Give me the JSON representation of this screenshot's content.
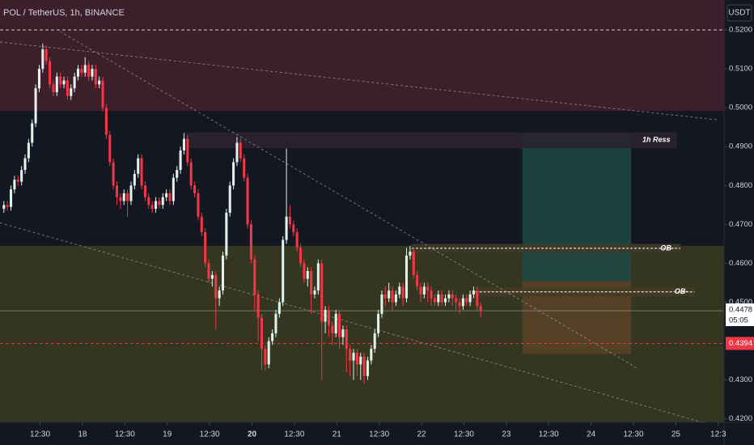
{
  "chart_data": {
    "type": "candlestick",
    "title": "POL / TetherUS, 1h, BINANCE",
    "currency": "USDT",
    "up_color": "#e0f2e9",
    "down_color": "#f23645",
    "ylim": [
      0.4191,
      0.5277
    ],
    "xlim": [
      -1.1,
      203.9
    ],
    "yticks": [
      {
        "value": 0.52,
        "label": "0.5200"
      },
      {
        "value": 0.51,
        "label": "0.5100"
      },
      {
        "value": 0.5,
        "label": "0.5000"
      },
      {
        "value": 0.49,
        "label": "0.4900"
      },
      {
        "value": 0.48,
        "label": "0.4800"
      },
      {
        "value": 0.47,
        "label": "0.4700"
      },
      {
        "value": 0.46,
        "label": "0.4600"
      },
      {
        "value": 0.45,
        "label": "0.4500"
      },
      {
        "value": 0.43,
        "label": "0.4300"
      },
      {
        "value": 0.42,
        "label": "0.4200"
      }
    ],
    "xticks": [
      {
        "value": 10.25,
        "label": "12:30"
      },
      {
        "value": 22.25,
        "label": "18"
      },
      {
        "value": 34.25,
        "label": "12:30"
      },
      {
        "value": 46.25,
        "label": "19"
      },
      {
        "value": 58.25,
        "label": "12:30"
      },
      {
        "value": 70.25,
        "label": "20"
      },
      {
        "value": 82.25,
        "label": "12:30"
      },
      {
        "value": 94.25,
        "label": "21"
      },
      {
        "value": 106.25,
        "label": "12:30"
      },
      {
        "value": 118.25,
        "label": "22"
      },
      {
        "value": 130.25,
        "label": "12:30"
      },
      {
        "value": 142.25,
        "label": "23"
      },
      {
        "value": 154.25,
        "label": "12:30"
      },
      {
        "value": 166.25,
        "label": "24"
      },
      {
        "value": 178.25,
        "label": "12:30"
      },
      {
        "value": 190.25,
        "label": "25"
      },
      {
        "value": 202.25,
        "label": "12:3"
      }
    ],
    "open": [
      0.474,
      0.475,
      0.4745,
      0.479,
      0.4815,
      0.481,
      0.484,
      0.487,
      0.491,
      0.496,
      0.505,
      0.51,
      0.515,
      0.512,
      0.506,
      0.504,
      0.508,
      0.506,
      0.507,
      0.503,
      0.505,
      0.508,
      0.51,
      0.509,
      0.511,
      0.508,
      0.51,
      0.506,
      0.507,
      0.5,
      0.493,
      0.486,
      0.48,
      0.477,
      0.476,
      0.478,
      0.476,
      0.48,
      0.483,
      0.487,
      0.48,
      0.477,
      0.475,
      0.474,
      0.476,
      0.475,
      0.477,
      0.478,
      0.476,
      0.482,
      0.484,
      0.489,
      0.492,
      0.486,
      0.48,
      0.478,
      0.472,
      0.468,
      0.46,
      0.456,
      0.457,
      0.451,
      0.453,
      0.462,
      0.473,
      0.48,
      0.486,
      0.491,
      0.487,
      0.482,
      0.47,
      0.461,
      0.452,
      0.446,
      0.438,
      0.434,
      0.44,
      0.442,
      0.447,
      0.45,
      0.466,
      0.472,
      0.47,
      0.468,
      0.464,
      0.46,
      0.456,
      0.458,
      0.452,
      0.453,
      0.46,
      0.445,
      0.448,
      0.444,
      0.442,
      0.447,
      0.441,
      0.443,
      0.438,
      0.435,
      0.437,
      0.434,
      0.436,
      0.431,
      0.435,
      0.438,
      0.442,
      0.447,
      0.452,
      0.451,
      0.453,
      0.45,
      0.452,
      0.454,
      0.451,
      0.462,
      0.463,
      0.457,
      0.454,
      0.452,
      0.454,
      0.453,
      0.451,
      0.45,
      0.452,
      0.45,
      0.451,
      0.452,
      0.451,
      0.45,
      0.449,
      0.451,
      0.45,
      0.452,
      0.453,
      0.449
    ],
    "high": [
      0.476,
      0.476,
      0.48,
      0.4825,
      0.4825,
      0.485,
      0.488,
      0.492,
      0.497,
      0.506,
      0.511,
      0.5165,
      0.516,
      0.513,
      0.507,
      0.509,
      0.509,
      0.508,
      0.508,
      0.506,
      0.509,
      0.511,
      0.511,
      0.513,
      0.512,
      0.511,
      0.511,
      0.508,
      0.508,
      0.501,
      0.494,
      0.487,
      0.481,
      0.478,
      0.479,
      0.479,
      0.481,
      0.484,
      0.488,
      0.488,
      0.481,
      0.478,
      0.476,
      0.477,
      0.477,
      0.478,
      0.479,
      0.479,
      0.483,
      0.485,
      0.49,
      0.4935,
      0.493,
      0.487,
      0.481,
      0.479,
      0.473,
      0.469,
      0.461,
      0.458,
      0.458,
      0.454,
      0.463,
      0.474,
      0.481,
      0.487,
      0.4925,
      0.492,
      0.488,
      0.483,
      0.471,
      0.462,
      0.453,
      0.447,
      0.439,
      0.441,
      0.443,
      0.448,
      0.451,
      0.467,
      0.4895,
      0.475,
      0.471,
      0.469,
      0.465,
      0.461,
      0.459,
      0.459,
      0.454,
      0.461,
      0.461,
      0.449,
      0.449,
      0.445,
      0.448,
      0.448,
      0.444,
      0.444,
      0.439,
      0.438,
      0.438,
      0.437,
      0.437,
      0.436,
      0.439,
      0.443,
      0.448,
      0.453,
      0.454,
      0.455,
      0.454,
      0.453,
      0.455,
      0.455,
      0.464,
      0.4645,
      0.464,
      0.458,
      0.455,
      0.455,
      0.455,
      0.454,
      0.452,
      0.453,
      0.453,
      0.452,
      0.453,
      0.453,
      0.452,
      0.451,
      0.452,
      0.452,
      0.453,
      0.454,
      0.454,
      0.45
    ],
    "low": [
      0.473,
      0.4735,
      0.4735,
      0.478,
      0.48,
      0.48,
      0.483,
      0.486,
      0.49,
      0.495,
      0.504,
      0.509,
      0.511,
      0.505,
      0.503,
      0.503,
      0.505,
      0.505,
      0.502,
      0.502,
      0.504,
      0.507,
      0.508,
      0.508,
      0.507,
      0.507,
      0.505,
      0.505,
      0.499,
      0.492,
      0.485,
      0.479,
      0.475,
      0.474,
      0.475,
      0.472,
      0.475,
      0.479,
      0.482,
      0.479,
      0.476,
      0.474,
      0.473,
      0.473,
      0.474,
      0.474,
      0.476,
      0.475,
      0.475,
      0.481,
      0.483,
      0.488,
      0.485,
      0.479,
      0.477,
      0.471,
      0.467,
      0.459,
      0.455,
      0.454,
      0.443,
      0.449,
      0.452,
      0.461,
      0.472,
      0.479,
      0.485,
      0.486,
      0.481,
      0.469,
      0.46,
      0.448,
      0.44,
      0.4325,
      0.4325,
      0.433,
      0.439,
      0.441,
      0.446,
      0.449,
      0.465,
      0.469,
      0.467,
      0.463,
      0.459,
      0.455,
      0.454,
      0.447,
      0.451,
      0.452,
      0.43,
      0.442,
      0.441,
      0.439,
      0.441,
      0.438,
      0.439,
      0.432,
      0.431,
      0.43,
      0.431,
      0.43,
      0.429,
      0.43,
      0.434,
      0.437,
      0.441,
      0.446,
      0.449,
      0.45,
      0.448,
      0.449,
      0.451,
      0.449,
      0.45,
      0.461,
      0.456,
      0.453,
      0.45,
      0.451,
      0.45,
      0.449,
      0.449,
      0.449,
      0.449,
      0.449,
      0.45,
      0.449,
      0.448,
      0.447,
      0.448,
      0.449,
      0.449,
      0.451,
      0.448,
      0.446
    ],
    "close": [
      0.475,
      0.4745,
      0.479,
      0.4815,
      0.481,
      0.484,
      0.487,
      0.491,
      0.496,
      0.505,
      0.51,
      0.515,
      0.512,
      0.506,
      0.504,
      0.508,
      0.506,
      0.507,
      0.503,
      0.505,
      0.508,
      0.51,
      0.509,
      0.511,
      0.508,
      0.51,
      0.506,
      0.507,
      0.5,
      0.493,
      0.486,
      0.48,
      0.477,
      0.476,
      0.478,
      0.476,
      0.48,
      0.483,
      0.487,
      0.48,
      0.477,
      0.475,
      0.474,
      0.476,
      0.475,
      0.477,
      0.478,
      0.476,
      0.482,
      0.484,
      0.489,
      0.492,
      0.486,
      0.48,
      0.478,
      0.472,
      0.468,
      0.46,
      0.456,
      0.457,
      0.451,
      0.453,
      0.462,
      0.473,
      0.48,
      0.486,
      0.491,
      0.487,
      0.482,
      0.47,
      0.461,
      0.452,
      0.446,
      0.438,
      0.434,
      0.44,
      0.442,
      0.447,
      0.45,
      0.466,
      0.472,
      0.47,
      0.468,
      0.464,
      0.46,
      0.456,
      0.458,
      0.452,
      0.453,
      0.46,
      0.445,
      0.448,
      0.444,
      0.442,
      0.447,
      0.441,
      0.443,
      0.438,
      0.435,
      0.437,
      0.434,
      0.436,
      0.431,
      0.435,
      0.438,
      0.442,
      0.447,
      0.452,
      0.451,
      0.453,
      0.45,
      0.452,
      0.454,
      0.451,
      0.462,
      0.463,
      0.457,
      0.454,
      0.452,
      0.454,
      0.453,
      0.451,
      0.45,
      0.452,
      0.45,
      0.451,
      0.452,
      0.451,
      0.45,
      0.449,
      0.451,
      0.45,
      0.452,
      0.453,
      0.449,
      0.4478
    ],
    "zones": [
      {
        "top": 0.5277,
        "bottom": 0.4992,
        "color": "#3d1e2b"
      },
      {
        "top": 0.4645,
        "bottom": 0.4191,
        "color": "#34361f"
      }
    ],
    "boxes": [
      {
        "label": "1h Ress",
        "x": [
          51.5,
          190.5
        ],
        "top": 0.4937,
        "bottom": 0.4896,
        "color": "#2a2330"
      },
      {
        "label": "OB-",
        "x": [
          115.5,
          191.5
        ],
        "top": 0.465,
        "bottom": 0.4627,
        "color": "#3f3a28"
      },
      {
        "label": "OB-",
        "x": [
          133.5,
          195.5
        ],
        "top": 0.4538,
        "bottom": 0.4515,
        "color": "#453b24"
      }
    ],
    "position": {
      "x": [
        146.8,
        177.6
      ],
      "target": 0.4933,
      "entry": 0.4554,
      "stop": 0.4367,
      "profit_color": "#1e4a44",
      "loss_color": "#5a4227"
    },
    "trendlines": [
      {
        "from": [
          15.9,
          0.5196
        ],
        "to": [
          179.2,
          0.4331
        ]
      },
      {
        "from": [
          -1.1,
          0.5169
        ],
        "to": [
          202.0,
          0.4969
        ]
      },
      {
        "from": [
          -1.1,
          0.4704
        ],
        "to": [
          203.2,
          0.4177
        ]
      }
    ],
    "last_price": {
      "value": 0.4478,
      "label": "0.4478"
    },
    "countdown": "05:05",
    "level": {
      "value": 0.4394,
      "label": "0.4394"
    },
    "top_level": 0.52
  }
}
